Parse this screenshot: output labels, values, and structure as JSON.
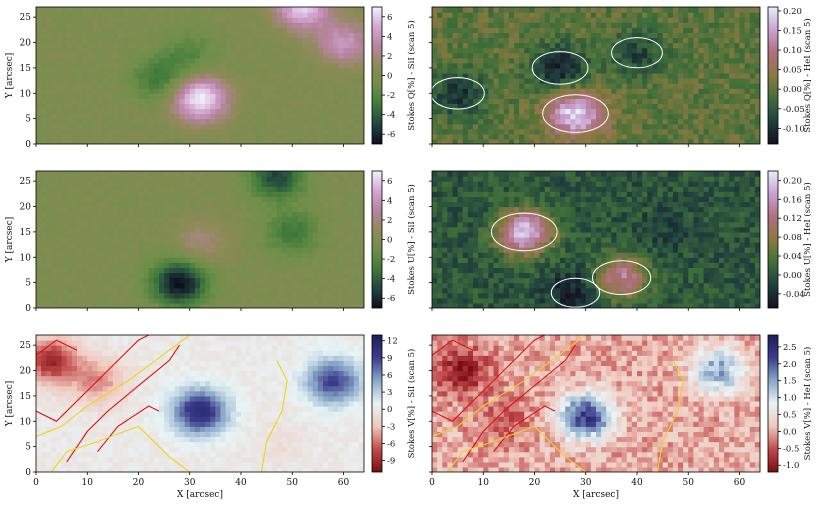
{
  "colors": {
    "q_si": [
      "#0b0f1e",
      "#23433e",
      "#3f7a3a",
      "#6f8f4a",
      "#8e8a58",
      "#b7849f",
      "#d6a7d4",
      "#eef4fb"
    ],
    "q_hei": [
      "#15101f",
      "#1f3f3e",
      "#3f6f3a",
      "#8a7a3f",
      "#b06f7f",
      "#c7a2d0",
      "#e8eef9"
    ],
    "v": [
      "#7a0c14",
      "#c24b4b",
      "#f0c8bd",
      "#e8f4f6",
      "#8aa8c8",
      "#3c3c8c",
      "#1e1e5a"
    ],
    "contour_red": "#e01010",
    "contour_yellow": "#f2d21c",
    "contour_white": "#ffffff"
  },
  "chart_data": [
    {
      "type": "heatmap",
      "panel": "top-left",
      "ylabel": "Y [arcsec]",
      "xlim": [
        0,
        64
      ],
      "ylim": [
        0,
        27
      ],
      "xticks": [
        0,
        10,
        20,
        30,
        40,
        50,
        60
      ],
      "yticks": [
        0,
        5,
        10,
        15,
        20,
        25
      ],
      "colorbar": {
        "label": "Stokes Q[%] - SiI (scan 5)",
        "range": [
          -7,
          7
        ],
        "ticks": [
          "-6",
          "-4",
          "-2",
          "0",
          "2",
          "4",
          "6"
        ],
        "colors": "q_si"
      },
      "features": [
        {
          "x": 32,
          "y": 9,
          "value": 7
        },
        {
          "x": 24,
          "y": 13,
          "value": -3
        },
        {
          "x": 30,
          "y": 18,
          "value": -2
        },
        {
          "x": 52,
          "y": 27,
          "value": 6
        },
        {
          "x": 60,
          "y": 20,
          "value": 4
        }
      ]
    },
    {
      "type": "heatmap",
      "panel": "top-right",
      "xlim": [
        0,
        64
      ],
      "ylim": [
        0,
        27
      ],
      "xticks": [
        0,
        10,
        20,
        30,
        40,
        50,
        60
      ],
      "yticks": [
        0,
        5,
        10,
        15,
        20,
        25
      ],
      "colorbar": {
        "label": "Stokes Q[%] - HeI (scan 5)",
        "range": [
          -0.14,
          0.21
        ],
        "ticks": [
          "-0.10",
          "-0.05",
          "0.00",
          "0.05",
          "0.10",
          "0.15",
          "0.20"
        ],
        "colors": "q_hei"
      },
      "features": [
        {
          "x": 28,
          "y": 6,
          "value": 0.2
        },
        {
          "x": 25,
          "y": 15,
          "value": -0.12
        },
        {
          "x": 5,
          "y": 10,
          "value": -0.1
        },
        {
          "x": 40,
          "y": 18,
          "value": -0.08
        }
      ]
    },
    {
      "type": "heatmap",
      "panel": "middle-left",
      "ylabel": "Y [arcsec]",
      "xlim": [
        0,
        64
      ],
      "ylim": [
        0,
        27
      ],
      "xticks": [
        0,
        10,
        20,
        30,
        40,
        50,
        60
      ],
      "yticks": [
        0,
        5,
        10,
        15,
        20,
        25
      ],
      "colorbar": {
        "label": "Stokes U[%] - SiI (scan 5)",
        "range": [
          -7,
          7
        ],
        "ticks": [
          "-6",
          "-4",
          "-2",
          "0",
          "2",
          "4",
          "6"
        ],
        "colors": "q_si"
      },
      "features": [
        {
          "x": 28,
          "y": 5,
          "value": -7
        },
        {
          "x": 47,
          "y": 26,
          "value": -5
        },
        {
          "x": 32,
          "y": 13,
          "value": 2
        },
        {
          "x": 50,
          "y": 15,
          "value": -3
        }
      ]
    },
    {
      "type": "heatmap",
      "panel": "middle-right",
      "xlim": [
        0,
        64
      ],
      "ylim": [
        0,
        27
      ],
      "xticks": [
        0,
        10,
        20,
        30,
        40,
        50,
        60
      ],
      "yticks": [
        0,
        5,
        10,
        15,
        20,
        25
      ],
      "colorbar": {
        "label": "Stokes U[%] - HeI (scan 5)",
        "range": [
          -0.07,
          0.22
        ],
        "ticks": [
          "-0.04",
          "0.00",
          "0.04",
          "0.08",
          "0.12",
          "0.16",
          "0.20"
        ],
        "colors": "q_hei"
      },
      "features": [
        {
          "x": 18,
          "y": 15,
          "value": 0.2
        },
        {
          "x": 45,
          "y": 15,
          "value": -0.02
        },
        {
          "x": 28,
          "y": 3,
          "value": -0.06
        },
        {
          "x": 37,
          "y": 6,
          "value": 0.14
        }
      ]
    },
    {
      "type": "heatmap",
      "panel": "bottom-left",
      "xlabel": "X [arcsec]",
      "ylabel": "Y [arcsec]",
      "xlim": [
        0,
        64
      ],
      "ylim": [
        0,
        27
      ],
      "xticks": [
        0,
        10,
        20,
        30,
        40,
        50,
        60
      ],
      "yticks": [
        0,
        5,
        10,
        15,
        20,
        25
      ],
      "colorbar": {
        "label": "Stokes V[%] - SiI (scan 5)",
        "range": [
          -11,
          13
        ],
        "ticks": [
          "-9",
          "-6",
          "-3",
          "0",
          "3",
          "6",
          "9",
          "12"
        ],
        "colors": "v"
      },
      "features": [
        {
          "x": 32,
          "y": 12,
          "value": 11
        },
        {
          "x": 58,
          "y": 18,
          "value": 9
        },
        {
          "x": 3,
          "y": 22,
          "value": -9
        },
        {
          "x": 12,
          "y": 18,
          "value": -5
        },
        {
          "x": 48,
          "y": 5,
          "value": -1
        }
      ]
    },
    {
      "type": "heatmap",
      "panel": "bottom-right",
      "xlabel": "X [arcsec]",
      "xlim": [
        0,
        64
      ],
      "ylim": [
        0,
        27
      ],
      "xticks": [
        0,
        10,
        20,
        30,
        40,
        50,
        60
      ],
      "yticks": [
        0,
        5,
        10,
        15,
        20,
        25
      ],
      "colorbar": {
        "label": "Stokes V[%] - HeI (scan 5)",
        "range": [
          -1.2,
          2.85
        ],
        "ticks": [
          "-1.0",
          "-0.5",
          "0.0",
          "0.5",
          "1.0",
          "1.5",
          "2.0",
          "2.5"
        ],
        "colors": "v"
      },
      "features": [
        {
          "x": 30,
          "y": 11,
          "value": 2.3
        },
        {
          "x": 56,
          "y": 20,
          "value": 1.5
        },
        {
          "x": 6,
          "y": 20,
          "value": -1.0
        },
        {
          "x": 14,
          "y": 10,
          "value": -0.5
        }
      ]
    }
  ]
}
